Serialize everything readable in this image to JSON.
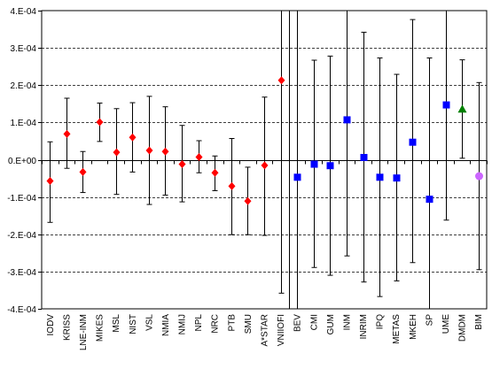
{
  "chart_data": {
    "type": "scatter",
    "title": "",
    "xlabel": "",
    "ylabel": "",
    "ylim": [
      -0.0004,
      0.0004
    ],
    "yticks": [
      {
        "value": 0.0004,
        "label": "4.E-04"
      },
      {
        "value": 0.0003,
        "label": "3.E-04"
      },
      {
        "value": 0.0002,
        "label": "2.E-04"
      },
      {
        "value": 0.0001,
        "label": "1.E-04"
      },
      {
        "value": 0,
        "label": "0.E+00"
      },
      {
        "value": -0.0001,
        "label": "-1.E-04"
      },
      {
        "value": -0.0002,
        "label": "-2.E-04"
      },
      {
        "value": -0.0003,
        "label": "-3.E-04"
      },
      {
        "value": -0.0004,
        "label": "-4.E-04"
      }
    ],
    "grid": "horizontal dashed",
    "divider_after": "VNIIOFI",
    "colors": {
      "red": "#ff0000",
      "blue": "#0000ff",
      "green": "#008000",
      "violet": "#cc66ff"
    },
    "categories": [
      "IODV",
      "KRISS",
      "LNE-INM",
      "MIKES",
      "MSL",
      "NIST",
      "VSL",
      "NMIA",
      "NMIJ",
      "NPL",
      "NRC",
      "PTB",
      "SMU",
      "A*STAR",
      "VNIIOFI",
      "BEV",
      "CMI",
      "GUM",
      "INM",
      "INRIM",
      "IPQ",
      "METAS",
      "MKEH",
      "SP",
      "UME",
      "DMDM",
      "BIM"
    ],
    "points": [
      {
        "x": "IODV",
        "y": -5.7e-05,
        "err_low": -0.000168,
        "err_high": 4.8e-05,
        "marker": "diamond",
        "color": "#ff0000"
      },
      {
        "x": "KRISS",
        "y": 6.9e-05,
        "err_low": -2.3e-05,
        "err_high": 0.000165,
        "marker": "diamond",
        "color": "#ff0000"
      },
      {
        "x": "LNE-INM",
        "y": -3.3e-05,
        "err_low": -8.8e-05,
        "err_high": 2.2e-05,
        "marker": "diamond",
        "color": "#ff0000"
      },
      {
        "x": "MIKES",
        "y": 0.000101,
        "err_low": 4.9e-05,
        "err_high": 0.000152,
        "marker": "diamond",
        "color": "#ff0000"
      },
      {
        "x": "MSL",
        "y": 2e-05,
        "err_low": -9.3e-05,
        "err_high": 0.000137,
        "marker": "diamond",
        "color": "#ff0000"
      },
      {
        "x": "NIST",
        "y": 6e-05,
        "err_low": -3.3e-05,
        "err_high": 0.000153,
        "marker": "diamond",
        "color": "#ff0000"
      },
      {
        "x": "VSL",
        "y": 2.5e-05,
        "err_low": -0.00012,
        "err_high": 0.00017,
        "marker": "diamond",
        "color": "#ff0000"
      },
      {
        "x": "NMIA",
        "y": 2.2e-05,
        "err_low": -9.5e-05,
        "err_high": 0.000142,
        "marker": "diamond",
        "color": "#ff0000"
      },
      {
        "x": "NMIJ",
        "y": -1.2e-05,
        "err_low": -0.000113,
        "err_high": 9.2e-05,
        "marker": "diamond",
        "color": "#ff0000"
      },
      {
        "x": "NPL",
        "y": 7e-06,
        "err_low": -3.5e-05,
        "err_high": 5.1e-05,
        "marker": "diamond",
        "color": "#ff0000"
      },
      {
        "x": "NRC",
        "y": -3.5e-05,
        "err_low": -8.3e-05,
        "err_high": 1e-05,
        "marker": "diamond",
        "color": "#ff0000"
      },
      {
        "x": "PTB",
        "y": -7.1e-05,
        "err_low": -0.000201,
        "err_high": 5.7e-05,
        "marker": "diamond",
        "color": "#ff0000"
      },
      {
        "x": "SMU",
        "y": -0.000111,
        "err_low": -0.000201,
        "err_high": -2e-05,
        "marker": "diamond",
        "color": "#ff0000"
      },
      {
        "x": "A*STAR",
        "y": -1.5e-05,
        "err_low": -0.000203,
        "err_high": 0.000168,
        "marker": "diamond",
        "color": "#ff0000"
      },
      {
        "x": "VNIIOFI",
        "y": 0.000213,
        "err_low": -0.000358,
        "err_high": 0.0004,
        "marker": "diamond",
        "color": "#ff0000"
      },
      {
        "x": "BEV",
        "y": -4.7e-05,
        "err_low": -0.0004,
        "err_high": 0.0004,
        "marker": "square",
        "color": "#0000ff"
      },
      {
        "x": "CMI",
        "y": -1.2e-05,
        "err_low": -0.000289,
        "err_high": 0.000267,
        "marker": "square",
        "color": "#0000ff"
      },
      {
        "x": "GUM",
        "y": -1.6e-05,
        "err_low": -0.00031,
        "err_high": 0.000278,
        "marker": "square",
        "color": "#0000ff"
      },
      {
        "x": "INM",
        "y": 0.000107,
        "err_low": -0.000258,
        "err_high": 0.0004,
        "marker": "square",
        "color": "#0000ff"
      },
      {
        "x": "INRIM",
        "y": 6e-06,
        "err_low": -0.000328,
        "err_high": 0.000342,
        "marker": "square",
        "color": "#0000ff"
      },
      {
        "x": "IPQ",
        "y": -4.7e-05,
        "err_low": -0.000367,
        "err_high": 0.000273,
        "marker": "square",
        "color": "#0000ff"
      },
      {
        "x": "METAS",
        "y": -4.9e-05,
        "err_low": -0.000325,
        "err_high": 0.000229,
        "marker": "square",
        "color": "#0000ff"
      },
      {
        "x": "MKEH",
        "y": 4.7e-05,
        "err_low": -0.000276,
        "err_high": 0.000376,
        "marker": "square",
        "color": "#0000ff"
      },
      {
        "x": "SP",
        "y": -0.000106,
        "err_low": -0.0004,
        "err_high": 0.000273,
        "marker": "square",
        "color": "#0000ff"
      },
      {
        "x": "UME",
        "y": 0.000147,
        "err_low": -0.000162,
        "err_high": 0.0004,
        "marker": "square",
        "color": "#0000ff"
      },
      {
        "x": "DMDM",
        "y": 0.000136,
        "err_low": 4e-06,
        "err_high": 0.000268,
        "marker": "triangle",
        "color": "#008000"
      },
      {
        "x": "BIM",
        "y": -4.4e-05,
        "err_low": -0.000295,
        "err_high": 0.000207,
        "marker": "circle",
        "color": "#cc66ff"
      }
    ]
  }
}
